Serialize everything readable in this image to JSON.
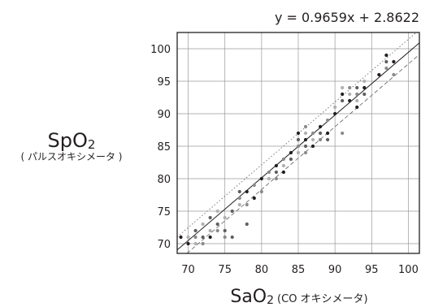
{
  "chart_data": {
    "type": "scatter",
    "title": "",
    "equation": "y = 0.9659x + 2.8622",
    "xlabel": {
      "main": "SaO",
      "sub": "2",
      "note": "(CO オキシメータ)"
    },
    "ylabel": {
      "main": "SpO",
      "sub": "2",
      "note": "( パルスオキシメータ )"
    },
    "xlim": [
      68.5,
      101.5
    ],
    "ylim": [
      68.5,
      102.5
    ],
    "xticks": [
      70,
      75,
      80,
      85,
      90,
      95,
      100
    ],
    "yticks": [
      70,
      75,
      80,
      85,
      90,
      95,
      100
    ],
    "grid": true,
    "regression": {
      "slope": 0.9659,
      "intercept": 2.8622
    },
    "bands": [
      {
        "style": "dashed",
        "offset": -1.8
      },
      {
        "style": "dotted",
        "offset": 2.0
      }
    ],
    "series": [
      {
        "values": [
          {
            "x": 69,
            "y": 71
          },
          {
            "x": 70,
            "y": 71
          },
          {
            "x": 70,
            "y": 70
          },
          {
            "x": 71,
            "y": 71
          },
          {
            "x": 71,
            "y": 70
          },
          {
            "x": 71,
            "y": 72
          },
          {
            "x": 72,
            "y": 70
          },
          {
            "x": 72,
            "y": 71
          },
          {
            "x": 72,
            "y": 73
          },
          {
            "x": 73,
            "y": 71
          },
          {
            "x": 73,
            "y": 72
          },
          {
            "x": 73,
            "y": 74
          },
          {
            "x": 74,
            "y": 72
          },
          {
            "x": 74,
            "y": 73
          },
          {
            "x": 74,
            "y": 75
          },
          {
            "x": 75,
            "y": 71
          },
          {
            "x": 75,
            "y": 72
          },
          {
            "x": 75,
            "y": 74
          },
          {
            "x": 76,
            "y": 71
          },
          {
            "x": 76,
            "y": 75
          },
          {
            "x": 77,
            "y": 76
          },
          {
            "x": 77,
            "y": 77
          },
          {
            "x": 77,
            "y": 78
          },
          {
            "x": 78,
            "y": 73
          },
          {
            "x": 78,
            "y": 76
          },
          {
            "x": 78,
            "y": 78
          },
          {
            "x": 79,
            "y": 77
          },
          {
            "x": 79,
            "y": 79
          },
          {
            "x": 80,
            "y": 78
          },
          {
            "x": 80,
            "y": 80
          },
          {
            "x": 81,
            "y": 80
          },
          {
            "x": 81,
            "y": 81
          },
          {
            "x": 82,
            "y": 80
          },
          {
            "x": 82,
            "y": 81
          },
          {
            "x": 82,
            "y": 82
          },
          {
            "x": 83,
            "y": 81
          },
          {
            "x": 83,
            "y": 82
          },
          {
            "x": 83,
            "y": 83
          },
          {
            "x": 84,
            "y": 83
          },
          {
            "x": 84,
            "y": 84
          },
          {
            "x": 85,
            "y": 84
          },
          {
            "x": 85,
            "y": 85
          },
          {
            "x": 85,
            "y": 86
          },
          {
            "x": 85,
            "y": 87
          },
          {
            "x": 86,
            "y": 84
          },
          {
            "x": 86,
            "y": 85
          },
          {
            "x": 86,
            "y": 86
          },
          {
            "x": 86,
            "y": 87
          },
          {
            "x": 86,
            "y": 88
          },
          {
            "x": 87,
            "y": 85
          },
          {
            "x": 87,
            "y": 86
          },
          {
            "x": 87,
            "y": 87
          },
          {
            "x": 88,
            "y": 86
          },
          {
            "x": 88,
            "y": 87
          },
          {
            "x": 88,
            "y": 88
          },
          {
            "x": 89,
            "y": 86
          },
          {
            "x": 89,
            "y": 87
          },
          {
            "x": 89,
            "y": 89
          },
          {
            "x": 90,
            "y": 90
          },
          {
            "x": 90,
            "y": 91
          },
          {
            "x": 91,
            "y": 87
          },
          {
            "x": 91,
            "y": 92
          },
          {
            "x": 91,
            "y": 93
          },
          {
            "x": 91,
            "y": 94
          },
          {
            "x": 92,
            "y": 92
          },
          {
            "x": 92,
            "y": 93
          },
          {
            "x": 92,
            "y": 94
          },
          {
            "x": 93,
            "y": 91
          },
          {
            "x": 93,
            "y": 92
          },
          {
            "x": 93,
            "y": 93
          },
          {
            "x": 93,
            "y": 94
          },
          {
            "x": 94,
            "y": 93
          },
          {
            "x": 94,
            "y": 94
          },
          {
            "x": 94,
            "y": 95
          },
          {
            "x": 96,
            "y": 96
          },
          {
            "x": 97,
            "y": 97
          },
          {
            "x": 97,
            "y": 98
          },
          {
            "x": 97,
            "y": 99
          },
          {
            "x": 98,
            "y": 96
          },
          {
            "x": 98,
            "y": 98
          }
        ]
      }
    ],
    "colors": {
      "axis": "#231f20",
      "grid": "#9a9a9a",
      "fit": "#231f20",
      "band": "#6d6e71",
      "points": "#4d4d4f"
    }
  }
}
